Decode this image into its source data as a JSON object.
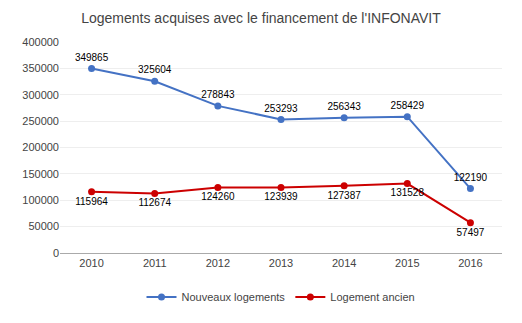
{
  "chart_data": {
    "type": "line",
    "title": "Logements acquises avec le financement de l'INFONAVIT",
    "x": [
      2010,
      2011,
      2012,
      2013,
      2014,
      2015,
      2016
    ],
    "series": [
      {
        "name": "Nouveaux logements",
        "color": "#4472C4",
        "marker": "circle",
        "line_style": "solid",
        "values": [
          349865,
          325604,
          278843,
          253293,
          256343,
          258429,
          122190
        ]
      },
      {
        "name": "Logement ancien",
        "color": "#CC0000",
        "marker": "circle",
        "line_style": "solid",
        "values": [
          115964,
          112674,
          124260,
          123939,
          127387,
          131528,
          57497
        ]
      }
    ],
    "xlim": [
      2009.5,
      2016.5
    ],
    "xticks": [
      2010,
      2011,
      2012,
      2013,
      2014,
      2015,
      2016
    ],
    "ylim": [
      0,
      400000
    ],
    "yticks": [
      0,
      50000,
      100000,
      150000,
      200000,
      250000,
      300000,
      350000,
      400000
    ],
    "grid": true,
    "legend": "bottom",
    "data_labels": true
  }
}
